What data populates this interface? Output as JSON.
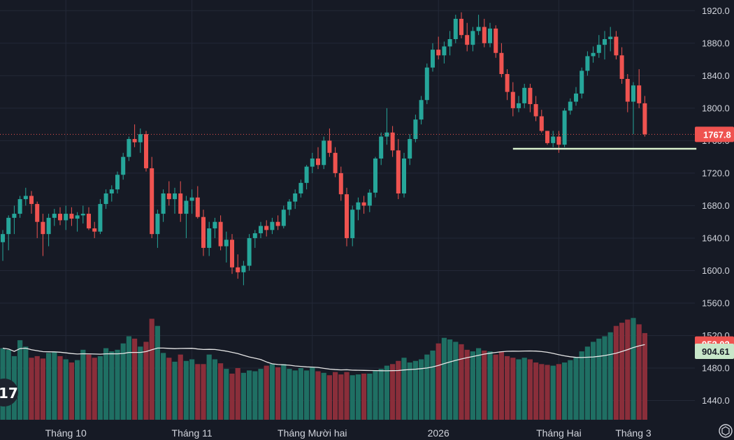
{
  "chart_data": {
    "type": "candlestick",
    "colors": {
      "background": "#161a25",
      "grid": "#232837",
      "up": "#26a69a",
      "down": "#ef5350",
      "volume_up": "#1f6f63",
      "volume_down": "#8a2e3a",
      "volume_ma": "#e6e6e6",
      "support_line": "#d9f2cf",
      "last_price_line": "#ef5350",
      "text": "#d1d4dc"
    },
    "y_axis": {
      "ticks": [
        "1920.0",
        "1880.0",
        "1840.0",
        "1800.0",
        "1760.0",
        "1720.0",
        "1680.0",
        "1640.0",
        "1600.0",
        "1560.0",
        "1520.0",
        "1480.0",
        "1440.0"
      ],
      "range": [
        1425,
        1928
      ]
    },
    "x_axis": {
      "labels": [
        {
          "text": "Tháng 10",
          "index": 11
        },
        {
          "text": "Tháng 11",
          "index": 33
        },
        {
          "text": "Tháng Mười hai",
          "index": 54
        },
        {
          "text": "2026",
          "index": 76
        },
        {
          "text": "Tháng Hai",
          "index": 97
        },
        {
          "text": "Tháng 3",
          "index": 110
        }
      ]
    },
    "last_price": {
      "value": 1767.8,
      "label": "1767.8"
    },
    "volume_tags": [
      {
        "label": "952.02",
        "value": 952.02,
        "color": "#ef5350"
      },
      {
        "label": "904.61",
        "value": 904.61,
        "color": "#c8e6c9"
      }
    ],
    "support_level": {
      "value": 1750,
      "from_index": 89,
      "to_index": 121
    },
    "volume_scale": {
      "min": 0,
      "max": 1300
    },
    "candles": [
      [
        1635,
        1650,
        1612,
        1645,
        900
      ],
      [
        1645,
        1668,
        1625,
        1665,
        880
      ],
      [
        1665,
        1680,
        1645,
        1670,
        800
      ],
      [
        1670,
        1692,
        1665,
        1688,
        1000
      ],
      [
        1688,
        1702,
        1680,
        1692,
        920
      ],
      [
        1692,
        1698,
        1670,
        1682,
        780
      ],
      [
        1682,
        1685,
        1640,
        1660,
        800
      ],
      [
        1660,
        1670,
        1618,
        1645,
        770
      ],
      [
        1645,
        1670,
        1630,
        1665,
        840
      ],
      [
        1665,
        1676,
        1655,
        1670,
        850
      ],
      [
        1670,
        1678,
        1656,
        1662,
        800
      ],
      [
        1662,
        1680,
        1650,
        1670,
        760
      ],
      [
        1670,
        1678,
        1655,
        1664,
        720
      ],
      [
        1664,
        1672,
        1648,
        1668,
        750
      ],
      [
        1668,
        1680,
        1658,
        1670,
        880
      ],
      [
        1670,
        1678,
        1650,
        1652,
        820
      ],
      [
        1652,
        1660,
        1640,
        1648,
        780
      ],
      [
        1648,
        1688,
        1645,
        1682,
        800
      ],
      [
        1682,
        1700,
        1676,
        1695,
        900
      ],
      [
        1695,
        1705,
        1685,
        1700,
        860
      ],
      [
        1700,
        1722,
        1695,
        1718,
        880
      ],
      [
        1718,
        1745,
        1712,
        1740,
        960
      ],
      [
        1740,
        1765,
        1735,
        1762,
        1050
      ],
      [
        1762,
        1780,
        1752,
        1758,
        1020
      ],
      [
        1758,
        1775,
        1745,
        1768,
        920
      ],
      [
        1768,
        1772,
        1722,
        1726,
        980
      ],
      [
        1726,
        1740,
        1640,
        1645,
        1270
      ],
      [
        1645,
        1675,
        1628,
        1670,
        1180
      ],
      [
        1670,
        1700,
        1660,
        1695,
        840
      ],
      [
        1695,
        1710,
        1680,
        1688,
        780
      ],
      [
        1688,
        1702,
        1670,
        1695,
        730
      ],
      [
        1695,
        1710,
        1660,
        1670,
        820
      ],
      [
        1670,
        1692,
        1640,
        1686,
        740
      ],
      [
        1686,
        1700,
        1670,
        1690,
        760
      ],
      [
        1690,
        1704,
        1664,
        1666,
        700
      ],
      [
        1666,
        1675,
        1618,
        1628,
        700
      ],
      [
        1628,
        1660,
        1618,
        1652,
        820
      ],
      [
        1652,
        1665,
        1640,
        1660,
        760
      ],
      [
        1660,
        1668,
        1625,
        1630,
        710
      ],
      [
        1630,
        1648,
        1610,
        1638,
        640
      ],
      [
        1638,
        1645,
        1596,
        1604,
        580
      ],
      [
        1604,
        1620,
        1590,
        1598,
        650
      ],
      [
        1598,
        1612,
        1582,
        1606,
        590
      ],
      [
        1606,
        1645,
        1600,
        1640,
        620
      ],
      [
        1640,
        1650,
        1628,
        1646,
        610
      ],
      [
        1646,
        1660,
        1640,
        1655,
        640
      ],
      [
        1655,
        1662,
        1642,
        1650,
        680
      ],
      [
        1650,
        1665,
        1645,
        1660,
        700
      ],
      [
        1660,
        1668,
        1650,
        1655,
        660
      ],
      [
        1655,
        1680,
        1652,
        1675,
        700
      ],
      [
        1675,
        1688,
        1668,
        1685,
        640
      ],
      [
        1685,
        1700,
        1676,
        1695,
        620
      ],
      [
        1695,
        1712,
        1690,
        1708,
        650
      ],
      [
        1708,
        1730,
        1700,
        1728,
        620
      ],
      [
        1728,
        1745,
        1720,
        1738,
        660
      ],
      [
        1738,
        1752,
        1725,
        1730,
        610
      ],
      [
        1730,
        1765,
        1725,
        1760,
        590
      ],
      [
        1760,
        1775,
        1740,
        1745,
        560
      ],
      [
        1745,
        1752,
        1715,
        1720,
        600
      ],
      [
        1720,
        1728,
        1686,
        1694,
        570
      ],
      [
        1694,
        1702,
        1630,
        1640,
        600
      ],
      [
        1640,
        1680,
        1630,
        1675,
        560
      ],
      [
        1675,
        1690,
        1662,
        1684,
        570
      ],
      [
        1684,
        1692,
        1670,
        1680,
        580
      ],
      [
        1680,
        1700,
        1672,
        1696,
        580
      ],
      [
        1696,
        1740,
        1690,
        1738,
        620
      ],
      [
        1738,
        1770,
        1730,
        1765,
        640
      ],
      [
        1765,
        1800,
        1755,
        1770,
        680
      ],
      [
        1770,
        1778,
        1740,
        1748,
        700
      ],
      [
        1748,
        1762,
        1688,
        1695,
        740
      ],
      [
        1695,
        1745,
        1690,
        1738,
        780
      ],
      [
        1738,
        1768,
        1730,
        1762,
        720
      ],
      [
        1762,
        1792,
        1758,
        1786,
        740
      ],
      [
        1786,
        1815,
        1780,
        1810,
        760
      ],
      [
        1810,
        1855,
        1805,
        1850,
        820
      ],
      [
        1850,
        1880,
        1845,
        1872,
        870
      ],
      [
        1872,
        1888,
        1860,
        1865,
        960
      ],
      [
        1865,
        1882,
        1855,
        1876,
        1030
      ],
      [
        1876,
        1895,
        1865,
        1885,
        1010
      ],
      [
        1885,
        1915,
        1880,
        1910,
        980
      ],
      [
        1910,
        1918,
        1886,
        1890,
        950
      ],
      [
        1890,
        1905,
        1870,
        1878,
        880
      ],
      [
        1878,
        1900,
        1870,
        1895,
        860
      ],
      [
        1895,
        1915,
        1890,
        1900,
        900
      ],
      [
        1900,
        1910,
        1875,
        1880,
        870
      ],
      [
        1880,
        1905,
        1875,
        1898,
        860
      ],
      [
        1898,
        1902,
        1862,
        1868,
        820
      ],
      [
        1868,
        1880,
        1838,
        1842,
        860
      ],
      [
        1842,
        1848,
        1810,
        1820,
        800
      ],
      [
        1820,
        1832,
        1790,
        1800,
        780
      ],
      [
        1800,
        1815,
        1795,
        1806,
        760
      ],
      [
        1806,
        1830,
        1800,
        1825,
        780
      ],
      [
        1825,
        1830,
        1795,
        1805,
        760
      ],
      [
        1805,
        1815,
        1784,
        1790,
        720
      ],
      [
        1790,
        1798,
        1770,
        1772,
        700
      ],
      [
        1772,
        1772,
        1755,
        1757,
        690
      ],
      [
        1757,
        1772,
        1752,
        1765,
        680
      ],
      [
        1765,
        1772,
        1745,
        1755,
        700
      ],
      [
        1755,
        1800,
        1752,
        1797,
        720
      ],
      [
        1797,
        1812,
        1792,
        1808,
        750
      ],
      [
        1808,
        1826,
        1803,
        1818,
        790
      ],
      [
        1818,
        1850,
        1812,
        1846,
        860
      ],
      [
        1846,
        1870,
        1840,
        1864,
        920
      ],
      [
        1864,
        1876,
        1856,
        1868,
        980
      ],
      [
        1868,
        1890,
        1862,
        1878,
        1020
      ],
      [
        1878,
        1895,
        1860,
        1885,
        1050
      ],
      [
        1885,
        1900,
        1870,
        1888,
        1100
      ],
      [
        1888,
        1895,
        1860,
        1865,
        1180
      ],
      [
        1865,
        1875,
        1830,
        1836,
        1220
      ],
      [
        1836,
        1842,
        1795,
        1808,
        1260
      ],
      [
        1808,
        1832,
        1768,
        1828,
        1280
      ],
      [
        1828,
        1848,
        1800,
        1806,
        1200
      ],
      [
        1806,
        1815,
        1765,
        1767.8,
        1090
      ]
    ]
  }
}
